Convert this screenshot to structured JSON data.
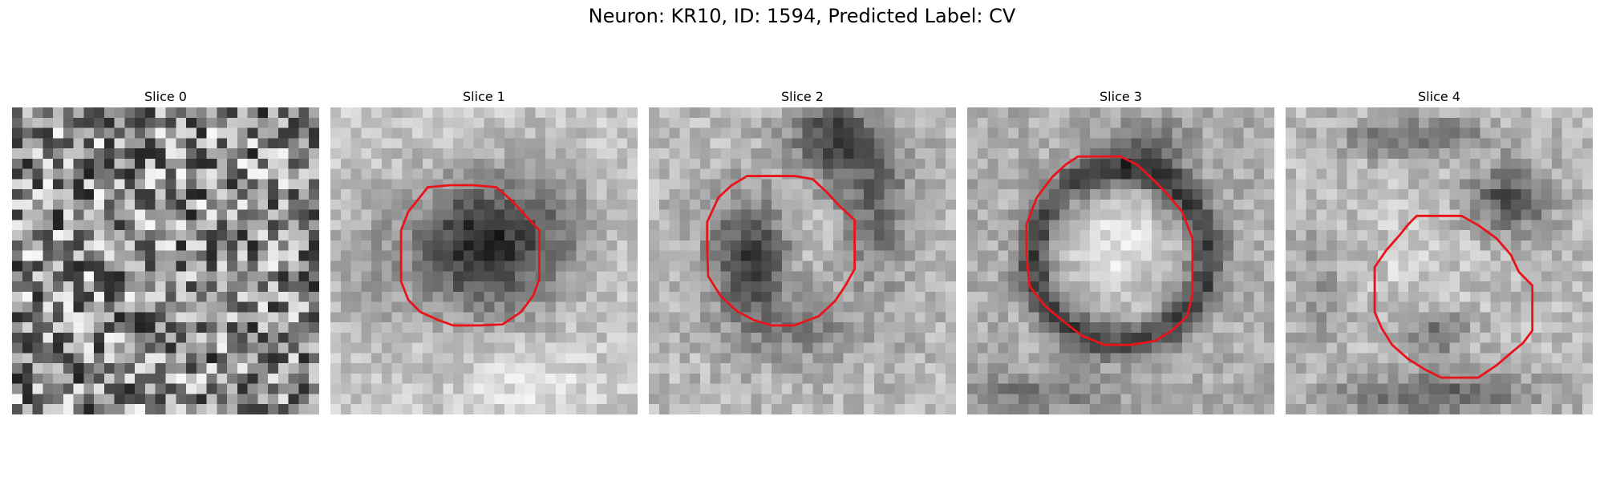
{
  "figure": {
    "title": "Neuron: KR10, ID: 1594, Predicted Label: CV"
  },
  "slices": [
    {
      "title": "Slice 0",
      "has_contour": false,
      "image_description": "pure grayscale noise"
    },
    {
      "title": "Slice 1",
      "has_contour": true,
      "image_description": "dark blob centered with red octagonal outline"
    },
    {
      "title": "Slice 2",
      "has_contour": true,
      "image_description": "dark region left inside outline, light right"
    },
    {
      "title": "Slice 3",
      "has_contour": true,
      "image_description": "bright center ringed by dark membrane with red outline"
    },
    {
      "title": "Slice 4",
      "has_contour": true,
      "image_description": "light center, dark band upper right, red outline lower right"
    }
  ],
  "colors": {
    "contour": "#e8141a",
    "background": "#ffffff"
  }
}
